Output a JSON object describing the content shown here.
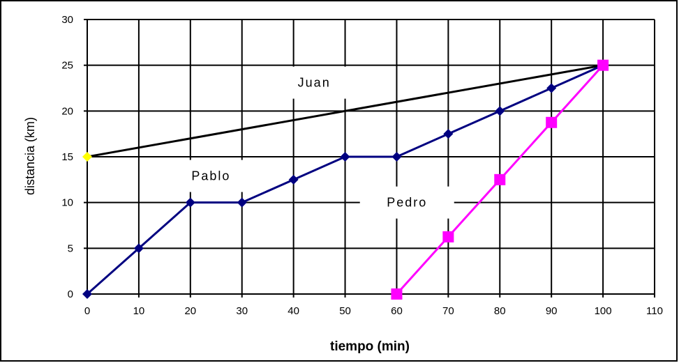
{
  "chart_data": {
    "type": "line",
    "xlabel": "tiempo (min)",
    "ylabel": "distancia (km)",
    "xlim": [
      0,
      110
    ],
    "ylim": [
      0,
      30
    ],
    "xticks": [
      0,
      10,
      20,
      30,
      40,
      50,
      60,
      70,
      80,
      90,
      100,
      110
    ],
    "yticks": [
      0,
      5,
      10,
      15,
      20,
      25,
      30
    ],
    "grid": true,
    "series": [
      {
        "name": "Juan",
        "color": "#000000",
        "marker": "diamond",
        "marker_color": "#ffff00",
        "x": [
          0,
          100
        ],
        "y": [
          15,
          25
        ]
      },
      {
        "name": "Pablo",
        "color": "#000080",
        "marker": "diamond",
        "marker_color": "#000080",
        "x": [
          0,
          10,
          20,
          30,
          40,
          50,
          60,
          70,
          80,
          90,
          100
        ],
        "y": [
          0,
          5,
          10,
          10,
          12.5,
          15,
          15,
          17.5,
          20,
          22.5,
          25
        ]
      },
      {
        "name": "Pedro",
        "color": "#ff00ff",
        "marker": "square",
        "marker_color": "#ff00ff",
        "x": [
          60,
          70,
          80,
          90,
          100
        ],
        "y": [
          0,
          6.25,
          12.5,
          18.75,
          25
        ]
      }
    ],
    "annotations": [
      {
        "text": "Juan",
        "x": 44,
        "y": 23.1
      },
      {
        "text": "Pablo",
        "x": 24,
        "y": 12.9
      },
      {
        "text": "Pedro",
        "x": 62,
        "y": 10
      }
    ]
  }
}
